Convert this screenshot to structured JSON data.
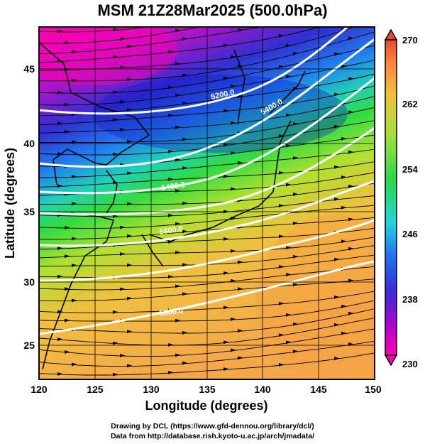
{
  "title": "MSM 21Z28Mar2025 (500.0hPa)",
  "x_axis": {
    "label": "Longitude (degrees)",
    "ticks": [
      "120",
      "125",
      "130",
      "135",
      "140",
      "145",
      "150"
    ]
  },
  "y_axis": {
    "label": "Latitude (degrees)",
    "ticks": [
      "25",
      "30",
      "35",
      "40",
      "45"
    ]
  },
  "colorbar": {
    "ticks": [
      "270",
      "262",
      "254",
      "246",
      "238",
      "230"
    ]
  },
  "contour_labels": [
    "5200.0",
    "5400.0",
    "5600.0",
    "5800.0",
    "5400.0"
  ],
  "credits": {
    "line1": "Drawing by DCL (https://www.gfd-dennou.org/library/dcl/)",
    "line2": "Data from http://database.rish.kyoto-u.ac.jp/arch/jmadata/"
  },
  "colors": {
    "cold": "#ff00b0",
    "mid": "#2be02b",
    "warm": "#ffa53a"
  }
}
